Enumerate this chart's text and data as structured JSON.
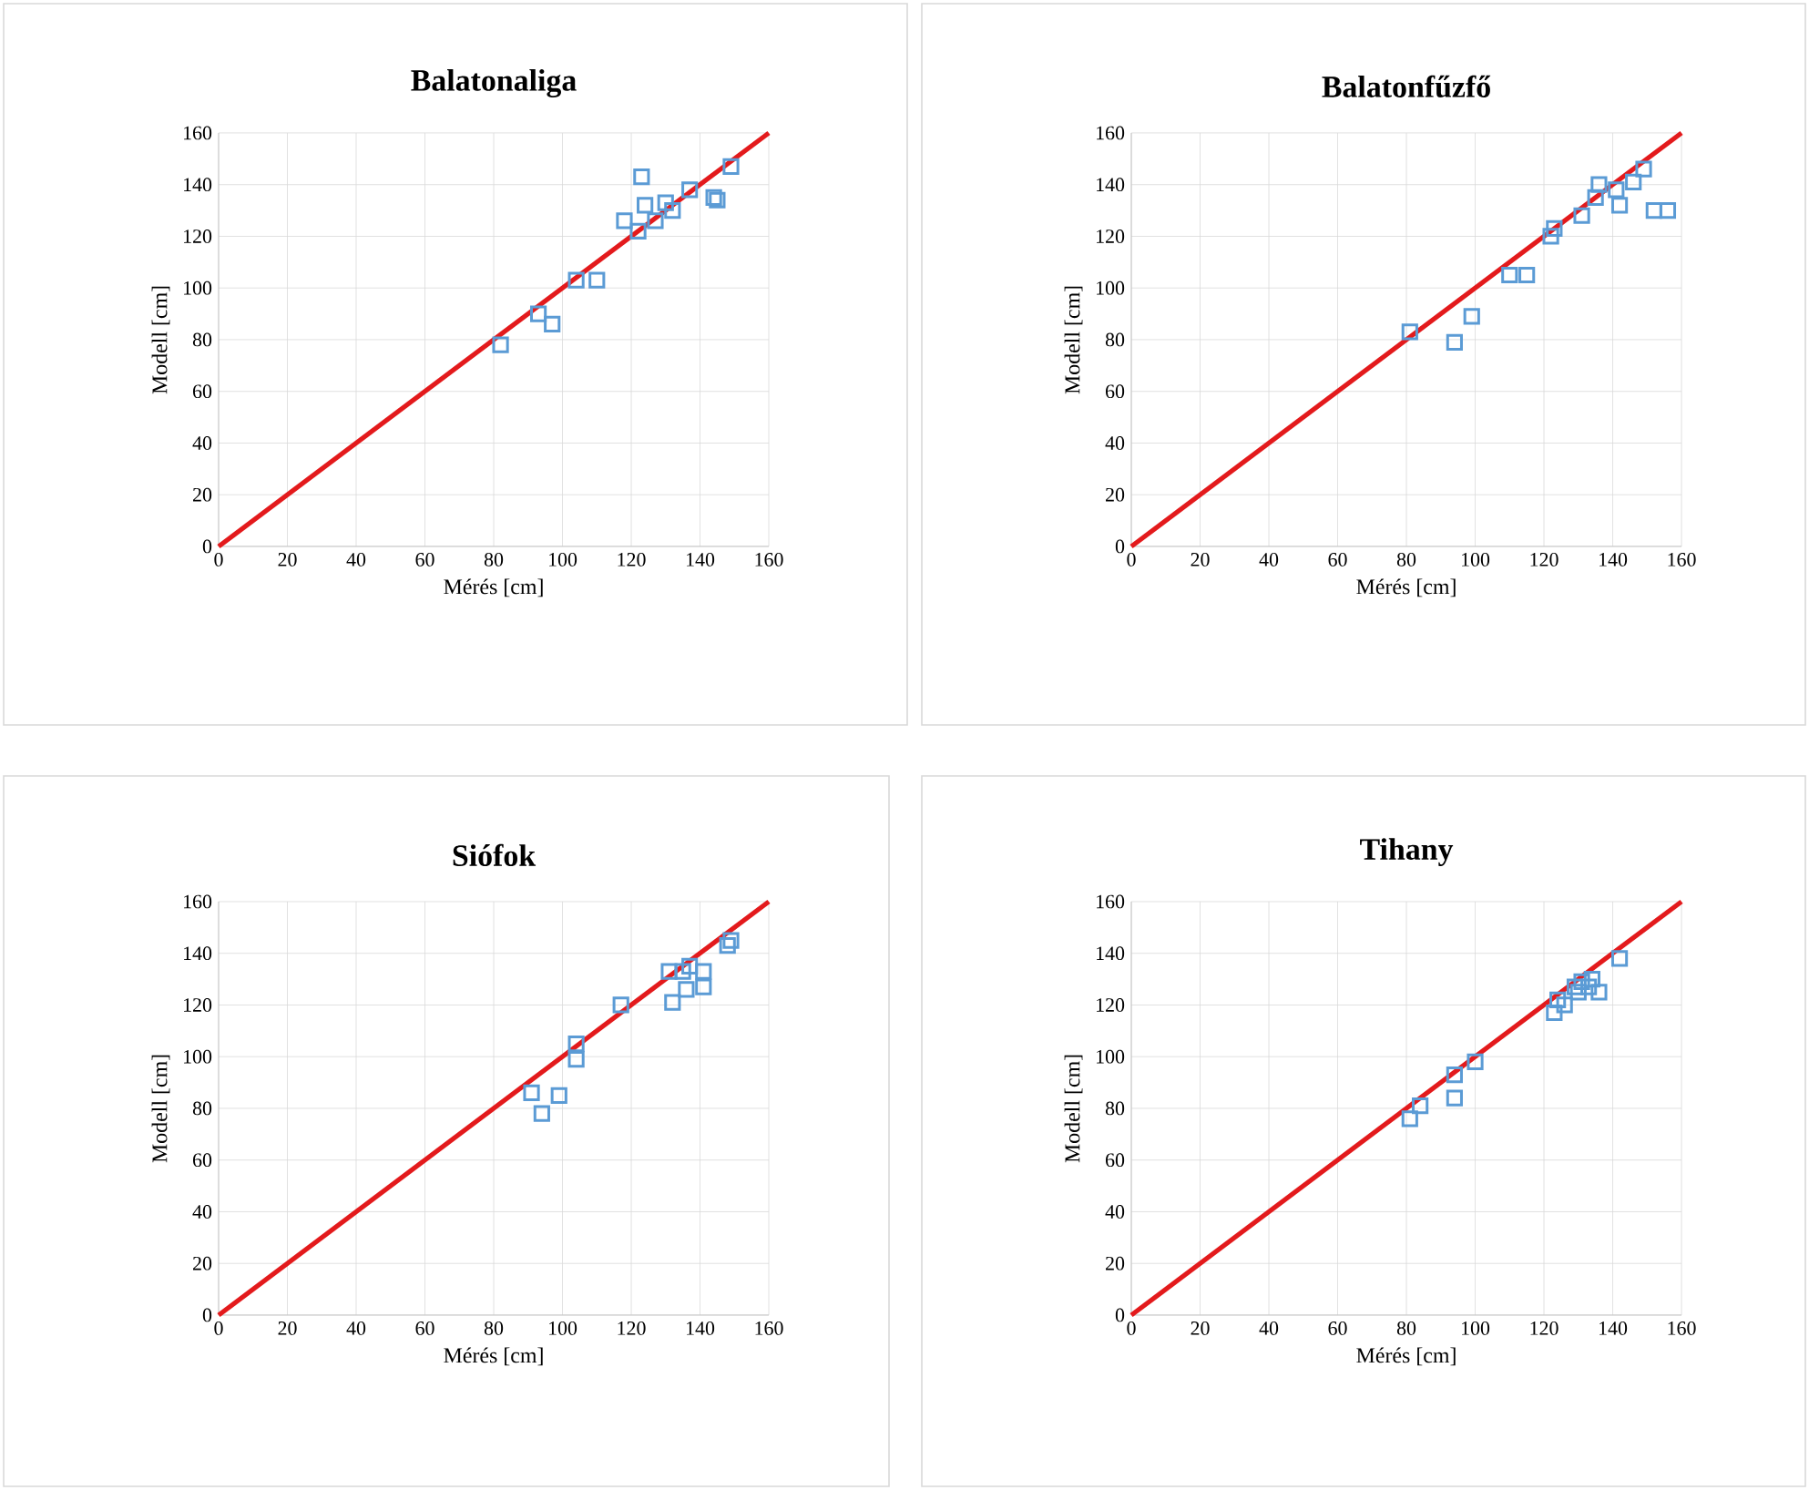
{
  "chart_data": [
    {
      "type": "scatter",
      "title": "Balatonaliga",
      "xlabel": "Mérés [cm]",
      "ylabel": "Modell [cm]",
      "xlim": [
        0,
        160
      ],
      "ylim": [
        0,
        160
      ],
      "xticks": [
        0,
        20,
        40,
        60,
        80,
        100,
        120,
        140,
        160
      ],
      "yticks": [
        0,
        20,
        40,
        60,
        80,
        100,
        120,
        140,
        160
      ],
      "grid": true,
      "series": [
        {
          "color": "#5b9bd5",
          "marker": "square",
          "x": [
            82,
            93,
            97,
            104,
            110,
            118,
            123,
            122,
            124,
            127,
            130,
            132,
            137,
            144,
            145,
            149
          ],
          "values": [
            78,
            90,
            86,
            103,
            103,
            126,
            143,
            122,
            132,
            126,
            133,
            130,
            138,
            135,
            134,
            147
          ]
        },
        {
          "type": "line",
          "color": "#e31a1c",
          "marker": "none",
          "x": [
            0,
            160
          ],
          "values": [
            0,
            160
          ]
        }
      ]
    },
    {
      "type": "scatter",
      "title": "Balatonfűzfő",
      "xlabel": "Mérés [cm]",
      "ylabel": "Modell [cm]",
      "xlim": [
        0,
        160
      ],
      "ylim": [
        0,
        160
      ],
      "xticks": [
        0,
        20,
        40,
        60,
        80,
        100,
        120,
        140,
        160
      ],
      "yticks": [
        0,
        20,
        40,
        60,
        80,
        100,
        120,
        140,
        160
      ],
      "grid": true,
      "series": [
        {
          "color": "#5b9bd5",
          "marker": "square",
          "x": [
            81,
            94,
            99,
            110,
            115,
            122,
            123,
            131,
            135,
            136,
            142,
            141,
            146,
            149,
            152,
            156
          ],
          "values": [
            83,
            79,
            89,
            105,
            105,
            120,
            123,
            128,
            135,
            140,
            132,
            138,
            141,
            146,
            130,
            130
          ]
        },
        {
          "type": "line",
          "color": "#e31a1c",
          "marker": "none",
          "x": [
            0,
            160
          ],
          "values": [
            0,
            160
          ]
        }
      ]
    },
    {
      "type": "scatter",
      "title": "Siófok",
      "xlabel": "Mérés [cm]",
      "ylabel": "Modell [cm]",
      "xlim": [
        0,
        160
      ],
      "ylim": [
        0,
        160
      ],
      "xticks": [
        0,
        20,
        40,
        60,
        80,
        100,
        120,
        140,
        160
      ],
      "yticks": [
        0,
        20,
        40,
        60,
        80,
        100,
        120,
        140,
        160
      ],
      "grid": true,
      "series": [
        {
          "color": "#5b9bd5",
          "marker": "square",
          "x": [
            91,
            94,
            99,
            104,
            104,
            117,
            131,
            132,
            135,
            136,
            137,
            141,
            141,
            148,
            149
          ],
          "values": [
            86,
            78,
            85,
            105,
            99,
            120,
            133,
            121,
            133,
            126,
            135,
            133,
            127,
            143,
            145
          ]
        },
        {
          "type": "line",
          "color": "#e31a1c",
          "marker": "none",
          "x": [
            0,
            160
          ],
          "values": [
            0,
            160
          ]
        }
      ]
    },
    {
      "type": "scatter",
      "title": "Tihany",
      "xlabel": "Mérés [cm]",
      "ylabel": "Modell [cm]",
      "xlim": [
        0,
        160
      ],
      "ylim": [
        0,
        160
      ],
      "xticks": [
        0,
        20,
        40,
        60,
        80,
        100,
        120,
        140,
        160
      ],
      "yticks": [
        0,
        20,
        40,
        60,
        80,
        100,
        120,
        140,
        160
      ],
      "grid": true,
      "series": [
        {
          "color": "#5b9bd5",
          "marker": "square",
          "x": [
            81,
            84,
            94,
            94,
            100,
            123,
            124,
            126,
            129,
            130,
            131,
            134,
            136,
            133,
            142
          ],
          "values": [
            76,
            81,
            84,
            93,
            98,
            117,
            122,
            120,
            127,
            125,
            129,
            130,
            125,
            127,
            138
          ]
        },
        {
          "type": "line",
          "color": "#e31a1c",
          "marker": "none",
          "x": [
            0,
            160
          ],
          "values": [
            0,
            160
          ]
        }
      ]
    }
  ]
}
